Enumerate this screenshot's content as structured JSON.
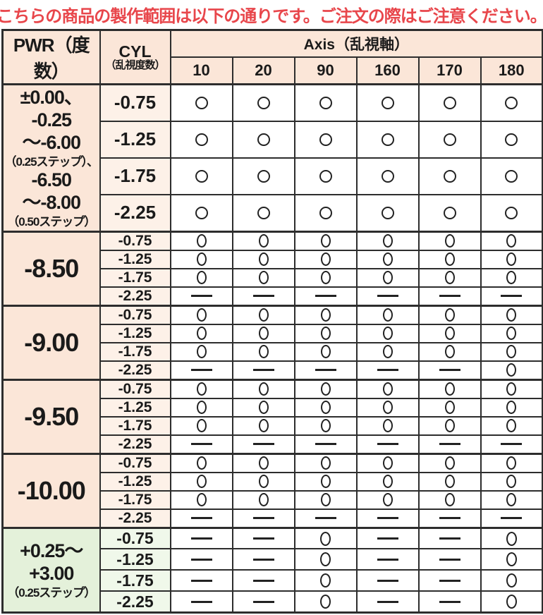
{
  "banner": {
    "text": "▼こちらの商品の製作範囲は以下の通りです。ご注文の際はご注意ください。▼"
  },
  "colors": {
    "banner_red": "#e8464b",
    "peach": "#fbe6d8",
    "peach_light": "#fdf1e8",
    "green": "#e4f1da",
    "green_light": "#f0f8ea",
    "border": "#2d2d2d"
  },
  "table": {
    "header": {
      "pwr_label": "PWR（度数）",
      "cyl_label_main": "CYL",
      "cyl_label_sub": "（乱視度数）",
      "axis_label": "Axis（乱視軸）",
      "axis_values": [
        "10",
        "20",
        "90",
        "160",
        "170",
        "180"
      ]
    },
    "symbols": {
      "available": "○",
      "unavailable": "—"
    },
    "groups": [
      {
        "theme": "peach",
        "pwr_lines": [
          {
            "text": "±0.00、",
            "size": "lg"
          },
          {
            "text": "-0.25～-6.00",
            "size": "lg"
          },
          {
            "text": "（0.25ステップ）、",
            "size": "sm"
          },
          {
            "text": "-6.50～-8.00",
            "size": "lg"
          },
          {
            "text": "（0.50ステップ）",
            "size": "sm"
          }
        ],
        "rows": [
          {
            "cyl": "-0.75",
            "cells": [
              1,
              1,
              1,
              1,
              1,
              1
            ]
          },
          {
            "cyl": "-1.25",
            "cells": [
              1,
              1,
              1,
              1,
              1,
              1
            ]
          },
          {
            "cyl": "-1.75",
            "cells": [
              1,
              1,
              1,
              1,
              1,
              1
            ]
          },
          {
            "cyl": "-2.25",
            "cells": [
              1,
              1,
              1,
              1,
              1,
              1
            ]
          }
        ]
      },
      {
        "theme": "peach",
        "pwr_lines": [
          {
            "text": "-8.50",
            "size": "xl"
          }
        ],
        "rows": [
          {
            "cyl": "-0.75",
            "cells": [
              1,
              1,
              1,
              1,
              1,
              1
            ]
          },
          {
            "cyl": "-1.25",
            "cells": [
              1,
              1,
              1,
              1,
              1,
              1
            ]
          },
          {
            "cyl": "-1.75",
            "cells": [
              1,
              1,
              1,
              1,
              1,
              1
            ]
          },
          {
            "cyl": "-2.25",
            "cells": [
              0,
              0,
              0,
              0,
              0,
              0
            ]
          }
        ]
      },
      {
        "theme": "peach",
        "pwr_lines": [
          {
            "text": "-9.00",
            "size": "xl"
          }
        ],
        "rows": [
          {
            "cyl": "-0.75",
            "cells": [
              1,
              1,
              1,
              1,
              1,
              1
            ]
          },
          {
            "cyl": "-1.25",
            "cells": [
              1,
              1,
              1,
              1,
              1,
              1
            ]
          },
          {
            "cyl": "-1.75",
            "cells": [
              1,
              1,
              1,
              1,
              1,
              1
            ]
          },
          {
            "cyl": "-2.25",
            "cells": [
              0,
              0,
              0,
              0,
              0,
              1
            ]
          }
        ]
      },
      {
        "theme": "peach",
        "pwr_lines": [
          {
            "text": "-9.50",
            "size": "xl"
          }
        ],
        "rows": [
          {
            "cyl": "-0.75",
            "cells": [
              1,
              1,
              1,
              1,
              1,
              1
            ]
          },
          {
            "cyl": "-1.25",
            "cells": [
              1,
              1,
              1,
              1,
              1,
              1
            ]
          },
          {
            "cyl": "-1.75",
            "cells": [
              1,
              1,
              1,
              1,
              1,
              1
            ]
          },
          {
            "cyl": "-2.25",
            "cells": [
              0,
              0,
              0,
              0,
              0,
              0
            ]
          }
        ]
      },
      {
        "theme": "peach",
        "pwr_lines": [
          {
            "text": "-10.00",
            "size": "xl"
          }
        ],
        "rows": [
          {
            "cyl": "-0.75",
            "cells": [
              1,
              1,
              1,
              1,
              1,
              1
            ]
          },
          {
            "cyl": "-1.25",
            "cells": [
              1,
              1,
              1,
              1,
              1,
              1
            ]
          },
          {
            "cyl": "-1.75",
            "cells": [
              1,
              1,
              1,
              1,
              1,
              1
            ]
          },
          {
            "cyl": "-2.25",
            "cells": [
              0,
              0,
              0,
              0,
              0,
              0
            ]
          }
        ]
      },
      {
        "theme": "green",
        "pwr_lines": [
          {
            "text": "+0.25～",
            "size": "lg"
          },
          {
            "text": "+3.00",
            "size": "lg"
          },
          {
            "text": "（0.25ステップ）",
            "size": "sm"
          }
        ],
        "rows": [
          {
            "cyl": "-0.75",
            "cells": [
              0,
              0,
              1,
              0,
              0,
              1
            ]
          },
          {
            "cyl": "-1.25",
            "cells": [
              0,
              0,
              1,
              0,
              0,
              1
            ]
          },
          {
            "cyl": "-1.75",
            "cells": [
              0,
              0,
              1,
              0,
              0,
              1
            ]
          },
          {
            "cyl": "-2.25",
            "cells": [
              0,
              0,
              1,
              0,
              0,
              1
            ]
          }
        ]
      }
    ]
  }
}
